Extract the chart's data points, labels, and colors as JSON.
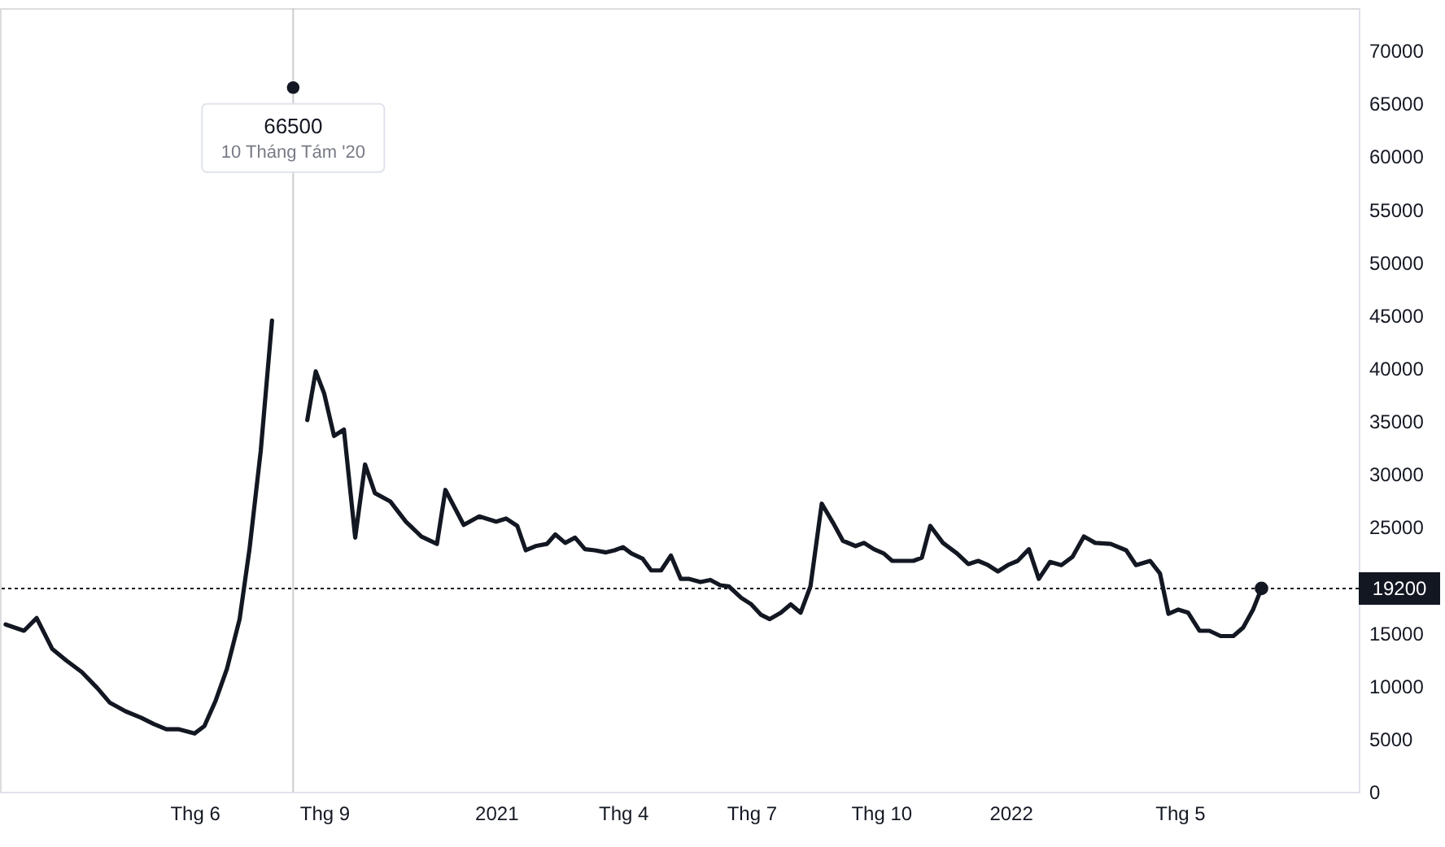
{
  "chart_data": {
    "type": "line",
    "x": [
      "2020-01-19",
      "2020-02-01",
      "2020-02-10",
      "2020-02-21",
      "2020-03-02",
      "2020-03-13",
      "2020-03-24",
      "2020-04-02",
      "2020-04-13",
      "2020-04-24",
      "2020-05-03",
      "2020-05-12",
      "2020-05-21",
      "2020-06-01",
      "2020-06-08",
      "2020-06-16",
      "2020-06-24",
      "2020-07-03",
      "2020-07-10",
      "2020-07-18",
      "2020-07-26",
      "2020-08-02",
      "2020-08-10",
      "2020-08-14",
      "2020-08-20",
      "2020-08-26",
      "2020-09-01",
      "2020-09-08",
      "2020-09-15",
      "2020-09-23",
      "2020-09-30",
      "2020-10-07",
      "2020-10-18",
      "2020-10-29",
      "2020-11-09",
      "2020-11-20",
      "2020-11-26",
      "2020-12-09",
      "2020-12-20",
      "2021-01-01",
      "2021-01-08",
      "2021-01-16",
      "2021-01-22",
      "2021-01-29",
      "2021-02-06",
      "2021-02-12",
      "2021-02-19",
      "2021-02-26",
      "2021-03-05",
      "2021-03-12",
      "2021-03-20",
      "2021-03-26",
      "2021-04-01",
      "2021-04-07",
      "2021-04-15",
      "2021-04-21",
      "2021-04-28",
      "2021-05-05",
      "2021-05-12",
      "2021-05-18",
      "2021-05-26",
      "2021-06-02",
      "2021-06-09",
      "2021-06-15",
      "2021-06-24",
      "2021-07-01",
      "2021-07-08",
      "2021-07-14",
      "2021-07-22",
      "2021-07-29",
      "2021-08-05",
      "2021-08-12",
      "2021-08-20",
      "2021-08-28",
      "2021-09-04",
      "2021-09-13",
      "2021-09-19",
      "2021-09-26",
      "2021-10-03",
      "2021-10-09",
      "2021-10-17",
      "2021-10-24",
      "2021-10-30",
      "2021-11-05",
      "2021-11-14",
      "2021-11-24",
      "2021-12-02",
      "2021-12-09",
      "2021-12-16",
      "2021-12-23",
      "2021-12-30",
      "2022-01-06",
      "2022-01-14",
      "2022-01-21",
      "2022-01-29",
      "2022-02-06",
      "2022-02-14",
      "2022-02-22",
      "2022-03-02",
      "2022-03-13",
      "2022-03-24",
      "2022-03-31",
      "2022-04-10",
      "2022-04-17",
      "2022-04-23",
      "2022-04-30",
      "2022-05-07",
      "2022-05-15",
      "2022-05-22",
      "2022-05-30",
      "2022-06-08",
      "2022-06-15",
      "2022-06-22",
      "2022-06-28"
    ],
    "series": [
      {
        "color": "#131722",
        "values": [
          15800,
          15200,
          16400,
          13500,
          12400,
          11300,
          9800,
          8400,
          7600,
          7000,
          6400,
          5900,
          5900,
          5500,
          6200,
          8600,
          11600,
          16300,
          22900,
          32200,
          44500,
          null,
          66500,
          null,
          35100,
          39700,
          37600,
          33600,
          34200,
          24000,
          30900,
          28200,
          27400,
          25500,
          24100,
          23400,
          28500,
          25200,
          26000,
          25500,
          25800,
          25100,
          22800,
          23200,
          23400,
          24300,
          23500,
          24000,
          22900,
          22800,
          22600,
          22800,
          23100,
          22500,
          22000,
          20900,
          20900,
          22300,
          20100,
          20100,
          19800,
          20000,
          19500,
          19400,
          18300,
          17700,
          16700,
          16300,
          16900,
          17700,
          16900,
          19400,
          27200,
          25400,
          23700,
          23200,
          23500,
          22900,
          22500,
          21800,
          21800,
          21800,
          22100,
          25100,
          23500,
          22500,
          21500,
          21800,
          21400,
          20800,
          21400,
          21800,
          22900,
          20100,
          21700,
          21400,
          22200,
          24100,
          23500,
          23400,
          22800,
          21400,
          21800,
          20600,
          16800,
          17200,
          16900,
          15200,
          15200,
          14700,
          14700,
          15500,
          17200,
          19200
        ]
      }
    ],
    "xlim": [
      "2020-01-15",
      "2022-09-05"
    ],
    "xticks": [
      {
        "value": "2020-06-01",
        "label": "Thg 6"
      },
      {
        "value": "2020-09-01",
        "label": "Thg 9"
      },
      {
        "value": "2021-01-01",
        "label": "2021"
      },
      {
        "value": "2021-04-01",
        "label": "Thg 4"
      },
      {
        "value": "2021-07-01",
        "label": "Thg 7"
      },
      {
        "value": "2021-10-01",
        "label": "Thg 10"
      },
      {
        "value": "2022-01-01",
        "label": "2022"
      },
      {
        "value": "2022-05-01",
        "label": "Thg 5"
      }
    ],
    "ylim": [
      0,
      74000
    ],
    "yticks": [
      0,
      5000,
      10000,
      15000,
      25000,
      30000,
      35000,
      40000,
      45000,
      50000,
      55000,
      60000,
      65000,
      70000
    ],
    "ref_lines": [
      {
        "axis": "y",
        "value": 19200,
        "label": "19200",
        "color": "#131722",
        "line_style": "dotted"
      },
      {
        "axis": "x",
        "value": "2020-08-10",
        "color": "#cccccc",
        "line_style": "solid"
      }
    ],
    "annotations": [
      {
        "text": "66500",
        "x": "2020-08-10",
        "y": 66500
      },
      "10 Tháng Tám '20"
    ],
    "grid": false,
    "marker": "none",
    "line_style": "solid"
  }
}
